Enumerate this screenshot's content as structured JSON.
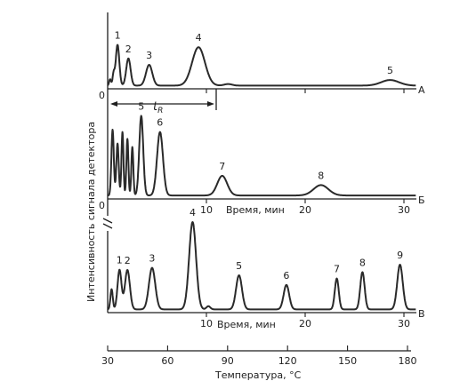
{
  "chart_data": [
    {
      "type": "line",
      "panel": "А",
      "origin_label": "0",
      "retention_label": "t",
      "retention_label_sub": "R",
      "x": [
        0.2,
        1.0,
        2.1,
        4.2,
        9.2,
        12.2,
        17.0,
        26.0,
        28.6,
        30.2,
        31.4
      ],
      "values": [
        0.04,
        0.55,
        0.38,
        0.3,
        0.52,
        0.06,
        0.05,
        0.05,
        0.11,
        0.04,
        0.03
      ],
      "baseline": 0.04,
      "peaks": [
        {
          "label": "1",
          "x": 1.0,
          "y": 0.55,
          "width": 0.18
        },
        {
          "label": "2",
          "x": 2.1,
          "y": 0.38,
          "width": 0.22
        },
        {
          "label": "3",
          "x": 4.2,
          "y": 0.3,
          "width": 0.32
        },
        {
          "label": "4",
          "x": 9.2,
          "y": 0.52,
          "width": 0.65
        },
        {
          "label": "5",
          "x": 28.6,
          "y": 0.11,
          "width": 0.9
        }
      ],
      "minor_peaks": [
        {
          "x": 0.25,
          "y": 0.12,
          "width": 0.1
        },
        {
          "x": 0.6,
          "y": 0.18,
          "width": 0.1
        },
        {
          "x": 12.2,
          "y": 0.06,
          "width": 0.4
        }
      ]
    },
    {
      "type": "line",
      "panel": "Б",
      "origin_label": "0",
      "xlabel": "Время, мин",
      "xticks": [
        10,
        20,
        30
      ],
      "x": [
        0.5,
        1.5,
        2.0,
        2.5,
        3.4,
        5.3,
        11.6,
        21.6,
        31.4
      ],
      "values": [
        0.62,
        0.58,
        0.6,
        0.55,
        0.72,
        0.58,
        0.2,
        0.12,
        0.03
      ],
      "baseline": 0.03,
      "peaks": [
        {
          "label": "5",
          "x": 3.4,
          "y": 0.72,
          "width": 0.2
        },
        {
          "label": "6",
          "x": 5.3,
          "y": 0.58,
          "width": 0.3
        },
        {
          "label": "7",
          "x": 11.6,
          "y": 0.2,
          "width": 0.5
        },
        {
          "label": "8",
          "x": 21.6,
          "y": 0.12,
          "width": 0.75
        }
      ],
      "minor_peaks": [
        {
          "x": 0.5,
          "y": 0.6,
          "width": 0.12
        },
        {
          "x": 1.0,
          "y": 0.48,
          "width": 0.12
        },
        {
          "x": 1.5,
          "y": 0.58,
          "width": 0.1
        },
        {
          "x": 2.0,
          "y": 0.52,
          "width": 0.1
        },
        {
          "x": 2.5,
          "y": 0.45,
          "width": 0.1
        }
      ]
    },
    {
      "type": "line",
      "panel": "В",
      "xlabel": "Время, мин",
      "xticks": [
        10,
        20,
        30
      ],
      "ylabel": "Интенсивность сигнала детектора",
      "secondary_xaxis": {
        "label": "Температура,  °C",
        "ticks": [
          30,
          60,
          90,
          120,
          150,
          180
        ],
        "range": [
          30,
          180
        ]
      },
      "x": [
        0.4,
        1.2,
        2.0,
        4.5,
        8.6,
        10.2,
        13.3,
        18.1,
        23.2,
        25.8,
        29.6
      ],
      "values": [
        0.22,
        0.4,
        0.4,
        0.42,
        0.85,
        0.06,
        0.35,
        0.26,
        0.32,
        0.38,
        0.45
      ],
      "baseline": 0.03,
      "peaks": [
        {
          "label": "1",
          "x": 1.2,
          "y": 0.4,
          "width": 0.2
        },
        {
          "label": "2",
          "x": 2.0,
          "y": 0.4,
          "width": 0.25
        },
        {
          "label": "3",
          "x": 4.5,
          "y": 0.42,
          "width": 0.32
        },
        {
          "label": "4",
          "x": 8.6,
          "y": 0.85,
          "width": 0.35
        },
        {
          "label": "5",
          "x": 13.3,
          "y": 0.35,
          "width": 0.3
        },
        {
          "label": "6",
          "x": 18.1,
          "y": 0.26,
          "width": 0.28
        },
        {
          "label": "7",
          "x": 23.2,
          "y": 0.32,
          "width": 0.2
        },
        {
          "label": "8",
          "x": 25.8,
          "y": 0.38,
          "width": 0.22
        },
        {
          "label": "9",
          "x": 29.6,
          "y": 0.45,
          "width": 0.28
        }
      ],
      "minor_peaks": [
        {
          "x": 0.4,
          "y": 0.22,
          "width": 0.12
        },
        {
          "x": 10.2,
          "y": 0.06,
          "width": 0.2
        }
      ]
    }
  ]
}
